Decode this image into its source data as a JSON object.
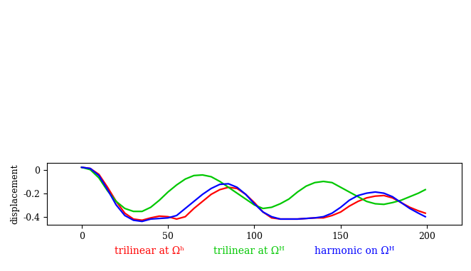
{
  "chart_data": {
    "type": "line",
    "y_label": "displacement",
    "x": [
      0,
      5,
      10,
      15,
      20,
      25,
      30,
      35,
      40,
      45,
      50,
      55,
      60,
      65,
      70,
      75,
      80,
      85,
      90,
      95,
      100,
      105,
      110,
      115,
      120,
      125,
      130,
      135,
      140,
      145,
      150,
      155,
      160,
      165,
      170,
      175,
      180,
      185,
      190,
      195,
      199
    ],
    "series": [
      {
        "name": "trilinear at Ωʰ",
        "color": "#ff0000",
        "values": [
          0.02,
          0.01,
          -0.04,
          -0.15,
          -0.27,
          -0.37,
          -0.42,
          -0.43,
          -0.41,
          -0.395,
          -0.4,
          -0.42,
          -0.4,
          -0.33,
          -0.27,
          -0.21,
          -0.17,
          -0.15,
          -0.16,
          -0.21,
          -0.28,
          -0.36,
          -0.41,
          -0.42,
          -0.42,
          -0.42,
          -0.415,
          -0.41,
          -0.41,
          -0.39,
          -0.36,
          -0.31,
          -0.27,
          -0.24,
          -0.225,
          -0.22,
          -0.24,
          -0.28,
          -0.32,
          -0.35,
          -0.37
        ]
      },
      {
        "name": "trilinear at Ωᴴ",
        "color": "#00c800",
        "values": [
          0.02,
          0.0,
          -0.07,
          -0.18,
          -0.27,
          -0.33,
          -0.355,
          -0.355,
          -0.32,
          -0.26,
          -0.19,
          -0.13,
          -0.08,
          -0.05,
          -0.045,
          -0.06,
          -0.1,
          -0.15,
          -0.2,
          -0.25,
          -0.3,
          -0.33,
          -0.32,
          -0.29,
          -0.25,
          -0.19,
          -0.14,
          -0.11,
          -0.1,
          -0.11,
          -0.15,
          -0.19,
          -0.23,
          -0.27,
          -0.29,
          -0.295,
          -0.28,
          -0.26,
          -0.23,
          -0.2,
          -0.17
        ]
      },
      {
        "name": "harmonic on Ωᴴ",
        "color": "#0000ff",
        "values": [
          0.02,
          0.01,
          -0.05,
          -0.17,
          -0.3,
          -0.39,
          -0.43,
          -0.44,
          -0.42,
          -0.415,
          -0.41,
          -0.39,
          -0.33,
          -0.27,
          -0.21,
          -0.16,
          -0.125,
          -0.12,
          -0.15,
          -0.21,
          -0.29,
          -0.36,
          -0.4,
          -0.42,
          -0.42,
          -0.42,
          -0.415,
          -0.41,
          -0.4,
          -0.37,
          -0.32,
          -0.26,
          -0.22,
          -0.2,
          -0.19,
          -0.2,
          -0.23,
          -0.28,
          -0.33,
          -0.37,
          -0.4
        ]
      }
    ],
    "xlim": [
      -20,
      220
    ],
    "xticks": [
      0,
      50,
      100,
      150,
      200
    ],
    "ylim": [
      -0.47,
      0.06
    ],
    "yticks": [
      0,
      -0.2,
      -0.4
    ],
    "grid": false
  }
}
